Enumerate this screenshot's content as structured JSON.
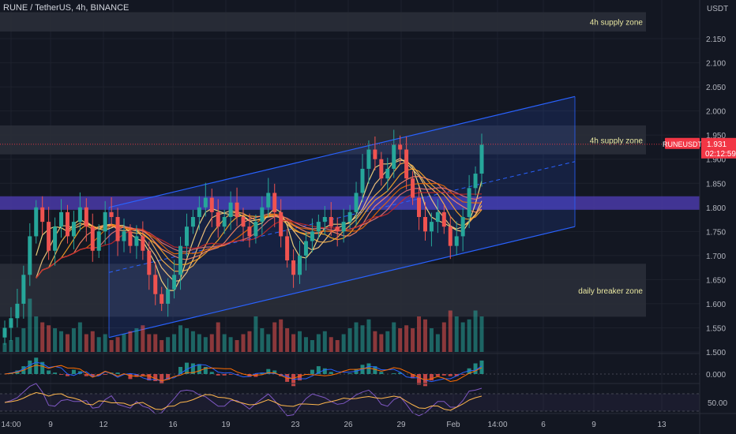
{
  "header": {
    "symbol_line": "RUNE / TetherUS, 4h, BINANCE"
  },
  "price_axis": {
    "currency": "USDT",
    "ticks": [
      "2.150",
      "2.100",
      "2.050",
      "2.000",
      "1.950",
      "1.900",
      "1.850",
      "1.800",
      "1.750",
      "1.700",
      "1.650",
      "1.600",
      "1.550",
      "1.500"
    ],
    "macd_tick": "0.000",
    "rsi_tick": "50.00"
  },
  "time_axis": {
    "ticks": [
      "14:00",
      "9",
      "12",
      "16",
      "19",
      "23",
      "26",
      "29",
      "Feb",
      "14:00",
      "6",
      "9",
      "13"
    ]
  },
  "current_price": {
    "symbol_tag": "RUNEUSDT",
    "price": "1.931",
    "countdown": "02:12:59",
    "color": "#f23645"
  },
  "zones": [
    {
      "label": "4h supply zone",
      "from": 2.165,
      "to": 2.205
    },
    {
      "label": "4h supply zone",
      "from": 1.91,
      "to": 1.97
    },
    {
      "label": "",
      "from": 1.795,
      "to": 1.823
    },
    {
      "label": "daily breaker zone",
      "from": 1.573,
      "to": 1.683
    }
  ],
  "colors": {
    "up": "#26a69a",
    "down": "#ef5350",
    "channel": "#2962ff",
    "zone": "#2a2e39",
    "purple_band": "#4a3aa8",
    "background": "#131722"
  },
  "chart_data": {
    "type": "candlestick",
    "title": "RUNE / TetherUS, 4h, BINANCE",
    "ylim": [
      1.5,
      2.2
    ],
    "x_ticks": [
      "14:00",
      "9",
      "12",
      "16",
      "19",
      "23",
      "26",
      "29",
      "Feb",
      "14:00",
      "6",
      "9",
      "13"
    ],
    "ohlc_close_series": [
      1.55,
      1.57,
      1.6,
      1.66,
      1.74,
      1.8,
      1.77,
      1.71,
      1.76,
      1.79,
      1.74,
      1.77,
      1.8,
      1.76,
      1.71,
      1.75,
      1.79,
      1.78,
      1.73,
      1.75,
      1.72,
      1.74,
      1.71,
      1.66,
      1.62,
      1.6,
      1.63,
      1.66,
      1.72,
      1.76,
      1.78,
      1.8,
      1.82,
      1.79,
      1.76,
      1.78,
      1.81,
      1.78,
      1.76,
      1.74,
      1.77,
      1.8,
      1.83,
      1.79,
      1.74,
      1.69,
      1.66,
      1.7,
      1.73,
      1.75,
      1.77,
      1.78,
      1.76,
      1.75,
      1.77,
      1.79,
      1.83,
      1.88,
      1.92,
      1.9,
      1.86,
      1.88,
      1.93,
      1.92,
      1.86,
      1.82,
      1.78,
      1.75,
      1.77,
      1.79,
      1.76,
      1.72,
      1.74,
      1.78,
      1.84,
      1.87,
      1.93
    ],
    "channel": {
      "upper_start": 1.8,
      "upper_end": 2.03,
      "lower_start": 1.53,
      "lower_end": 1.76,
      "mid_dashed": true
    },
    "volume_relative": [
      0.15,
      0.2,
      0.25,
      0.4,
      0.9,
      0.6,
      0.5,
      0.45,
      0.4,
      0.35,
      0.3,
      0.4,
      0.5,
      0.3,
      0.35,
      0.25,
      0.3,
      0.2,
      0.25,
      0.3,
      0.35,
      0.4,
      0.45,
      0.3,
      0.3,
      0.2,
      0.25,
      0.3,
      0.45,
      0.4,
      0.35,
      0.3,
      0.25,
      0.3,
      0.5,
      0.3,
      0.25,
      0.2,
      0.3,
      0.35,
      0.6,
      0.4,
      0.3,
      0.5,
      0.55,
      0.4,
      0.3,
      0.35,
      0.25,
      0.2,
      0.3,
      0.35,
      0.25,
      0.2,
      0.3,
      0.4,
      0.5,
      0.45,
      0.55,
      0.35,
      0.3,
      0.35,
      0.5,
      0.4,
      0.45,
      0.4,
      0.6,
      0.55,
      0.4,
      0.3,
      0.5,
      0.7,
      0.6,
      0.5,
      0.55,
      0.7,
      0.6
    ]
  }
}
